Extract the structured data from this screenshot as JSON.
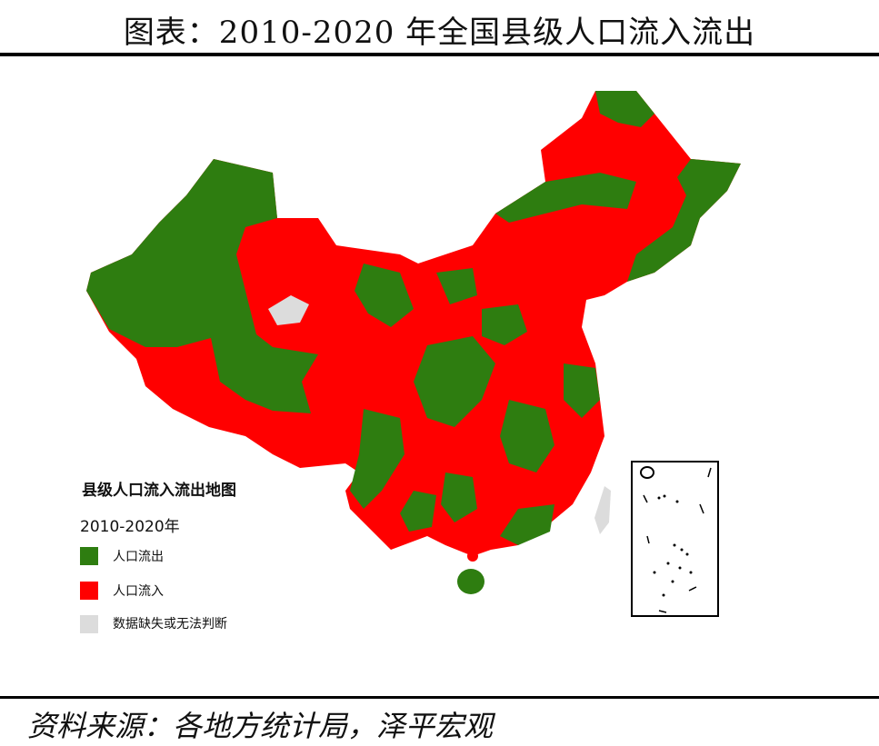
{
  "header": {
    "title": "图表：2010-2020 年全国县级人口流入流出"
  },
  "legend": {
    "title": "县级人口流入流出地图",
    "subtitle": "2010-2020年",
    "items": [
      {
        "label": "人口流出"
      },
      {
        "label": "人口流入"
      },
      {
        "label": "数据缺失或无法判断"
      }
    ]
  },
  "footer": {
    "source": "资料来源：各地方统计局，泽平宏观"
  }
}
